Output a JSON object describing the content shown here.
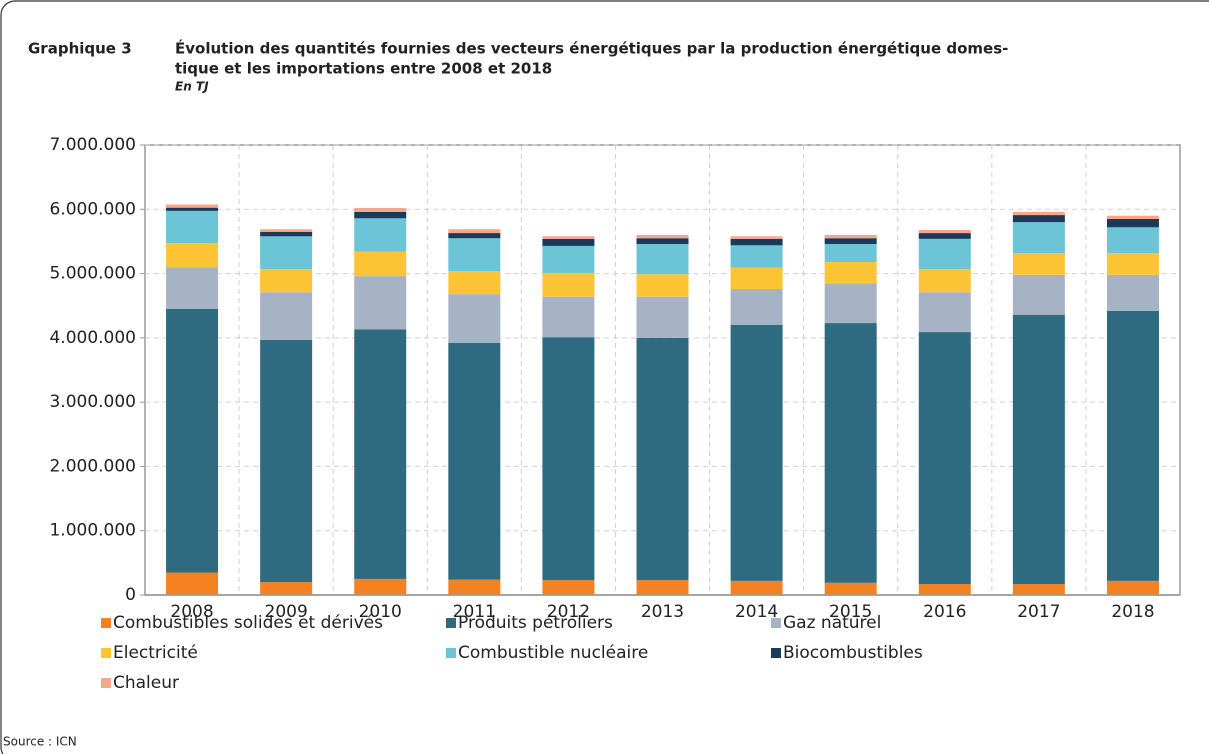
{
  "chart_data": {
    "type": "stacked-bar",
    "label": "Graphique 3",
    "title": [
      "Évolution des quantités fournies des vecteurs énergétiques par la production énergétique domes-",
      "tique et les importations entre 2008 et 2018"
    ],
    "subtitle": "En TJ",
    "source": "Source : ICN",
    "categories": [
      "2008",
      "2009",
      "2010",
      "2011",
      "2012",
      "2013",
      "2014",
      "2015",
      "2016",
      "2017",
      "2018"
    ],
    "series": [
      {
        "name": "Combustibles solides et dérivés",
        "color": "#f58220",
        "values": [
          350000,
          200000,
          250000,
          240000,
          230000,
          230000,
          220000,
          190000,
          170000,
          170000,
          220000
        ]
      },
      {
        "name": "Produits pétroliers",
        "color": "#2e6b80",
        "values": [
          4100000,
          3770000,
          3880000,
          3680000,
          3780000,
          3770000,
          3980000,
          4040000,
          3920000,
          4190000,
          4200000
        ]
      },
      {
        "name": "Gaz naturel",
        "color": "#a6b3c4",
        "values": [
          650000,
          740000,
          830000,
          760000,
          630000,
          640000,
          560000,
          620000,
          620000,
          620000,
          560000
        ]
      },
      {
        "name": "Electricité",
        "color": "#fdc535",
        "values": [
          375000,
          360000,
          380000,
          360000,
          370000,
          350000,
          330000,
          330000,
          360000,
          340000,
          340000
        ]
      },
      {
        "name": "Combustible nucléaire",
        "color": "#6cc5d7",
        "values": [
          500000,
          510000,
          520000,
          510000,
          420000,
          470000,
          350000,
          280000,
          470000,
          480000,
          400000
        ]
      },
      {
        "name": "Biocombustibles",
        "color": "#1b3a5a",
        "values": [
          50000,
          70000,
          100000,
          80000,
          110000,
          90000,
          100000,
          90000,
          90000,
          110000,
          130000
        ]
      },
      {
        "name": "Chaleur",
        "color": "#f4a78a",
        "values": [
          50000,
          40000,
          60000,
          60000,
          40000,
          50000,
          40000,
          50000,
          50000,
          50000,
          50000
        ]
      }
    ],
    "ylim": [
      0,
      7000000
    ],
    "yticks": [
      0,
      {
        "value": 1000000,
        "label": "1.000.000"
      },
      {
        "value": 2000000,
        "label": "2.000.000"
      },
      {
        "value": 3000000,
        "label": "3.000.000"
      },
      {
        "value": 4000000,
        "label": "4.000.000"
      },
      {
        "value": 5000000,
        "label": "5.000.000"
      },
      {
        "value": 6000000,
        "label": "6.000.000"
      },
      {
        "value": 7000000,
        "label": "7.000.000"
      }
    ],
    "grid": true
  }
}
